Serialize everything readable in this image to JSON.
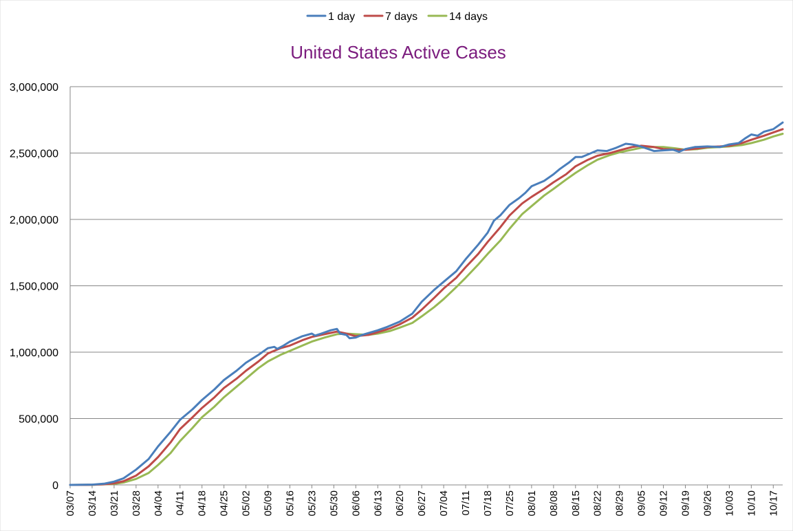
{
  "chart_data": {
    "type": "line",
    "title": "United States Active Cases",
    "title_color": "#7b1c7e",
    "xlabel": "",
    "ylabel": "",
    "ylim": [
      0,
      3000000
    ],
    "y_ticks": [
      "0",
      "500,000",
      "1,000,000",
      "1,500,000",
      "2,000,000",
      "2,500,000",
      "3,000,000"
    ],
    "y_tick_values": [
      0,
      500000,
      1000000,
      1500000,
      2000000,
      2500000,
      3000000
    ],
    "x_range": [
      "03/07",
      "10/20"
    ],
    "x_ticks": [
      "03/07",
      "03/14",
      "03/21",
      "03/28",
      "04/04",
      "04/11",
      "04/18",
      "04/25",
      "05/02",
      "05/09",
      "05/16",
      "05/23",
      "05/30",
      "06/06",
      "06/13",
      "06/20",
      "06/27",
      "07/04",
      "07/11",
      "07/18",
      "07/25",
      "08/01",
      "08/08",
      "08/15",
      "08/22",
      "08/29",
      "09/05",
      "09/12",
      "09/19",
      "09/26",
      "10/03",
      "10/10",
      "10/17"
    ],
    "grid": true,
    "legend_position": "top",
    "series": [
      {
        "name": "1 day",
        "color": "#4a7ebb",
        "points": [
          [
            "03/07",
            0
          ],
          [
            "03/14",
            2000
          ],
          [
            "03/18",
            10000
          ],
          [
            "03/21",
            25000
          ],
          [
            "03/24",
            50000
          ],
          [
            "03/28",
            115000
          ],
          [
            "04/01",
            195000
          ],
          [
            "04/04",
            290000
          ],
          [
            "04/08",
            400000
          ],
          [
            "04/11",
            490000
          ],
          [
            "04/15",
            570000
          ],
          [
            "04/18",
            640000
          ],
          [
            "04/22",
            720000
          ],
          [
            "04/25",
            790000
          ],
          [
            "04/29",
            860000
          ],
          [
            "05/02",
            920000
          ],
          [
            "05/06",
            980000
          ],
          [
            "05/09",
            1030000
          ],
          [
            "05/11",
            1040000
          ],
          [
            "05/12",
            1025000
          ],
          [
            "05/14",
            1050000
          ],
          [
            "05/16",
            1080000
          ],
          [
            "05/20",
            1120000
          ],
          [
            "05/23",
            1140000
          ],
          [
            "05/24",
            1125000
          ],
          [
            "05/26",
            1140000
          ],
          [
            "05/29",
            1165000
          ],
          [
            "05/31",
            1175000
          ],
          [
            "06/01",
            1140000
          ],
          [
            "06/03",
            1130000
          ],
          [
            "06/04",
            1105000
          ],
          [
            "06/06",
            1110000
          ],
          [
            "06/08",
            1130000
          ],
          [
            "06/13",
            1165000
          ],
          [
            "06/16",
            1190000
          ],
          [
            "06/20",
            1230000
          ],
          [
            "06/24",
            1290000
          ],
          [
            "06/27",
            1380000
          ],
          [
            "07/01",
            1470000
          ],
          [
            "07/04",
            1530000
          ],
          [
            "07/08",
            1610000
          ],
          [
            "07/11",
            1700000
          ],
          [
            "07/15",
            1810000
          ],
          [
            "07/18",
            1900000
          ],
          [
            "07/20",
            1990000
          ],
          [
            "07/22",
            2030000
          ],
          [
            "07/25",
            2110000
          ],
          [
            "07/28",
            2160000
          ],
          [
            "07/30",
            2200000
          ],
          [
            "08/01",
            2250000
          ],
          [
            "08/03",
            2270000
          ],
          [
            "08/05",
            2290000
          ],
          [
            "08/08",
            2340000
          ],
          [
            "08/10",
            2380000
          ],
          [
            "08/13",
            2430000
          ],
          [
            "08/15",
            2470000
          ],
          [
            "08/17",
            2470000
          ],
          [
            "08/20",
            2500000
          ],
          [
            "08/22",
            2520000
          ],
          [
            "08/25",
            2515000
          ],
          [
            "08/28",
            2540000
          ],
          [
            "08/31",
            2570000
          ],
          [
            "09/02",
            2565000
          ],
          [
            "09/04",
            2555000
          ],
          [
            "09/06",
            2540000
          ],
          [
            "09/09",
            2515000
          ],
          [
            "09/12",
            2520000
          ],
          [
            "09/15",
            2525000
          ],
          [
            "09/17",
            2510000
          ],
          [
            "09/19",
            2530000
          ],
          [
            "09/22",
            2545000
          ],
          [
            "09/26",
            2550000
          ],
          [
            "09/30",
            2545000
          ],
          [
            "10/03",
            2565000
          ],
          [
            "10/06",
            2575000
          ],
          [
            "10/08",
            2610000
          ],
          [
            "10/10",
            2640000
          ],
          [
            "10/12",
            2630000
          ],
          [
            "10/14",
            2660000
          ],
          [
            "10/17",
            2680000
          ],
          [
            "10/20",
            2730000
          ]
        ]
      },
      {
        "name": "7 days",
        "color": "#be4b48",
        "points": [
          [
            "03/07",
            0
          ],
          [
            "03/14",
            1000
          ],
          [
            "03/18",
            5000
          ],
          [
            "03/21",
            12000
          ],
          [
            "03/24",
            28000
          ],
          [
            "03/28",
            70000
          ],
          [
            "04/01",
            140000
          ],
          [
            "04/04",
            210000
          ],
          [
            "04/08",
            320000
          ],
          [
            "04/11",
            420000
          ],
          [
            "04/15",
            510000
          ],
          [
            "04/18",
            580000
          ],
          [
            "04/22",
            660000
          ],
          [
            "04/25",
            730000
          ],
          [
            "04/29",
            800000
          ],
          [
            "05/02",
            860000
          ],
          [
            "05/06",
            930000
          ],
          [
            "05/09",
            990000
          ],
          [
            "05/13",
            1030000
          ],
          [
            "05/16",
            1050000
          ],
          [
            "05/20",
            1090000
          ],
          [
            "05/23",
            1115000
          ],
          [
            "05/27",
            1135000
          ],
          [
            "05/31",
            1155000
          ],
          [
            "06/03",
            1140000
          ],
          [
            "06/06",
            1120000
          ],
          [
            "06/10",
            1130000
          ],
          [
            "06/13",
            1150000
          ],
          [
            "06/17",
            1180000
          ],
          [
            "06/20",
            1210000
          ],
          [
            "06/24",
            1260000
          ],
          [
            "06/27",
            1320000
          ],
          [
            "07/01",
            1410000
          ],
          [
            "07/04",
            1480000
          ],
          [
            "07/08",
            1560000
          ],
          [
            "07/11",
            1640000
          ],
          [
            "07/15",
            1740000
          ],
          [
            "07/18",
            1830000
          ],
          [
            "07/22",
            1940000
          ],
          [
            "07/25",
            2030000
          ],
          [
            "07/29",
            2120000
          ],
          [
            "08/01",
            2170000
          ],
          [
            "08/05",
            2230000
          ],
          [
            "08/08",
            2280000
          ],
          [
            "08/12",
            2340000
          ],
          [
            "08/15",
            2400000
          ],
          [
            "08/19",
            2450000
          ],
          [
            "08/22",
            2480000
          ],
          [
            "08/26",
            2500000
          ],
          [
            "08/29",
            2520000
          ],
          [
            "09/02",
            2545000
          ],
          [
            "09/05",
            2555000
          ],
          [
            "09/09",
            2545000
          ],
          [
            "09/12",
            2530000
          ],
          [
            "09/16",
            2525000
          ],
          [
            "09/19",
            2525000
          ],
          [
            "09/23",
            2535000
          ],
          [
            "09/26",
            2545000
          ],
          [
            "09/30",
            2550000
          ],
          [
            "10/03",
            2555000
          ],
          [
            "10/07",
            2575000
          ],
          [
            "10/10",
            2600000
          ],
          [
            "10/14",
            2630000
          ],
          [
            "10/17",
            2655000
          ],
          [
            "10/20",
            2680000
          ]
        ]
      },
      {
        "name": "14 days",
        "color": "#98b954",
        "points": [
          [
            "03/07",
            0
          ],
          [
            "03/14",
            500
          ],
          [
            "03/21",
            8000
          ],
          [
            "03/24",
            18000
          ],
          [
            "03/28",
            45000
          ],
          [
            "04/01",
            90000
          ],
          [
            "04/04",
            150000
          ],
          [
            "04/08",
            240000
          ],
          [
            "04/11",
            330000
          ],
          [
            "04/15",
            430000
          ],
          [
            "04/18",
            510000
          ],
          [
            "04/22",
            590000
          ],
          [
            "04/25",
            660000
          ],
          [
            "04/29",
            740000
          ],
          [
            "05/02",
            800000
          ],
          [
            "05/06",
            880000
          ],
          [
            "05/09",
            930000
          ],
          [
            "05/13",
            980000
          ],
          [
            "05/16",
            1010000
          ],
          [
            "05/20",
            1050000
          ],
          [
            "05/23",
            1080000
          ],
          [
            "05/27",
            1110000
          ],
          [
            "05/31",
            1135000
          ],
          [
            "06/03",
            1140000
          ],
          [
            "06/06",
            1135000
          ],
          [
            "06/10",
            1130000
          ],
          [
            "06/13",
            1140000
          ],
          [
            "06/17",
            1160000
          ],
          [
            "06/20",
            1185000
          ],
          [
            "06/24",
            1220000
          ],
          [
            "06/27",
            1270000
          ],
          [
            "07/01",
            1340000
          ],
          [
            "07/04",
            1400000
          ],
          [
            "07/08",
            1490000
          ],
          [
            "07/11",
            1560000
          ],
          [
            "07/15",
            1660000
          ],
          [
            "07/18",
            1740000
          ],
          [
            "07/22",
            1840000
          ],
          [
            "07/25",
            1930000
          ],
          [
            "07/29",
            2040000
          ],
          [
            "08/01",
            2100000
          ],
          [
            "08/05",
            2180000
          ],
          [
            "08/08",
            2230000
          ],
          [
            "08/12",
            2300000
          ],
          [
            "08/15",
            2350000
          ],
          [
            "08/19",
            2410000
          ],
          [
            "08/22",
            2450000
          ],
          [
            "08/26",
            2485000
          ],
          [
            "08/29",
            2505000
          ],
          [
            "09/02",
            2525000
          ],
          [
            "09/05",
            2540000
          ],
          [
            "09/09",
            2545000
          ],
          [
            "09/12",
            2545000
          ],
          [
            "09/16",
            2535000
          ],
          [
            "09/19",
            2525000
          ],
          [
            "09/23",
            2530000
          ],
          [
            "09/26",
            2540000
          ],
          [
            "09/30",
            2545000
          ],
          [
            "10/03",
            2550000
          ],
          [
            "10/07",
            2560000
          ],
          [
            "10/10",
            2575000
          ],
          [
            "10/14",
            2600000
          ],
          [
            "10/17",
            2625000
          ],
          [
            "10/20",
            2645000
          ]
        ]
      }
    ]
  }
}
